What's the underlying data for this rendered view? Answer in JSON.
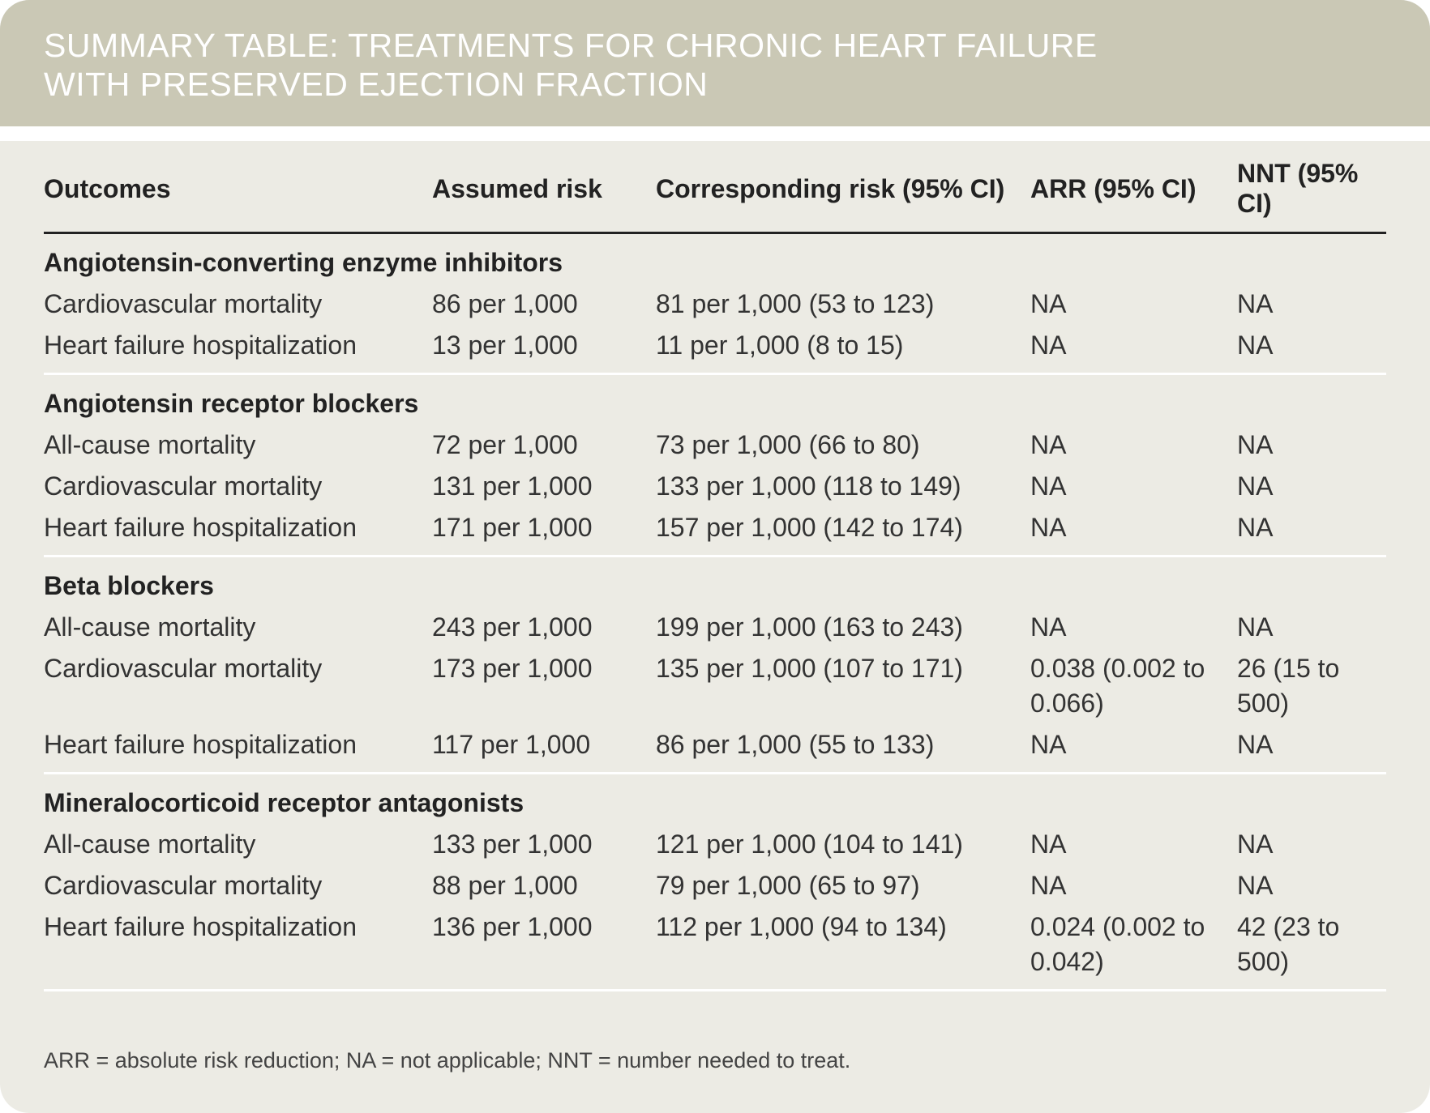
{
  "header": {
    "title_lines": [
      "SUMMARY TABLE: TREATMENTS FOR CHRONIC HEART FAILURE",
      "WITH PRESERVED EJECTION FRACTION"
    ]
  },
  "table": {
    "columns": [
      "Outcomes",
      "Assumed risk",
      "Corresponding risk (95% CI)",
      "ARR (95% CI)",
      "NNT (95% CI)"
    ],
    "groups": [
      {
        "name": "Angiotensin-converting enzyme inhibitors",
        "rows": [
          [
            "Cardiovascular mortality",
            "86 per 1,000",
            "81 per 1,000 (53 to 123)",
            "NA",
            "NA"
          ],
          [
            "Heart failure hospitalization",
            "13 per 1,000",
            "11 per 1,000 (8 to 15)",
            "NA",
            "NA"
          ]
        ]
      },
      {
        "name": "Angiotensin receptor blockers",
        "rows": [
          [
            "All-cause mortality",
            "72 per 1,000",
            "73 per 1,000 (66 to 80)",
            "NA",
            "NA"
          ],
          [
            "Cardiovascular mortality",
            "131 per 1,000",
            "133 per 1,000 (118 to 149)",
            "NA",
            "NA"
          ],
          [
            "Heart failure hospitalization",
            "171 per 1,000",
            "157 per 1,000 (142 to 174)",
            "NA",
            "NA"
          ]
        ]
      },
      {
        "name": "Beta blockers",
        "rows": [
          [
            "All-cause mortality",
            "243 per 1,000",
            "199 per 1,000 (163 to 243)",
            "NA",
            "NA"
          ],
          [
            "Cardiovascular mortality",
            "173 per 1,000",
            "135 per 1,000 (107 to 171)",
            "0.038 (0.002 to 0.066)",
            "26 (15 to 500)"
          ],
          [
            "Heart failure hospitalization",
            "117 per 1,000",
            "86 per 1,000 (55 to 133)",
            "NA",
            "NA"
          ]
        ]
      },
      {
        "name": "Mineralocorticoid receptor antagonists",
        "rows": [
          [
            "All-cause mortality",
            "133 per 1,000",
            "121 per 1,000 (104 to 141)",
            "NA",
            "NA"
          ],
          [
            "Cardiovascular mortality",
            "88 per 1,000",
            "79 per 1,000 (65 to 97)",
            "NA",
            "NA"
          ],
          [
            "Heart failure hospitalization",
            "136 per 1,000",
            "112 per 1,000 (94 to 134)",
            "0.024 (0.002 to 0.042)",
            "42 (23 to 500)"
          ]
        ]
      }
    ]
  },
  "footnote": "ARR = absolute risk reduction; NA = not applicable;  NNT = number needed to treat."
}
